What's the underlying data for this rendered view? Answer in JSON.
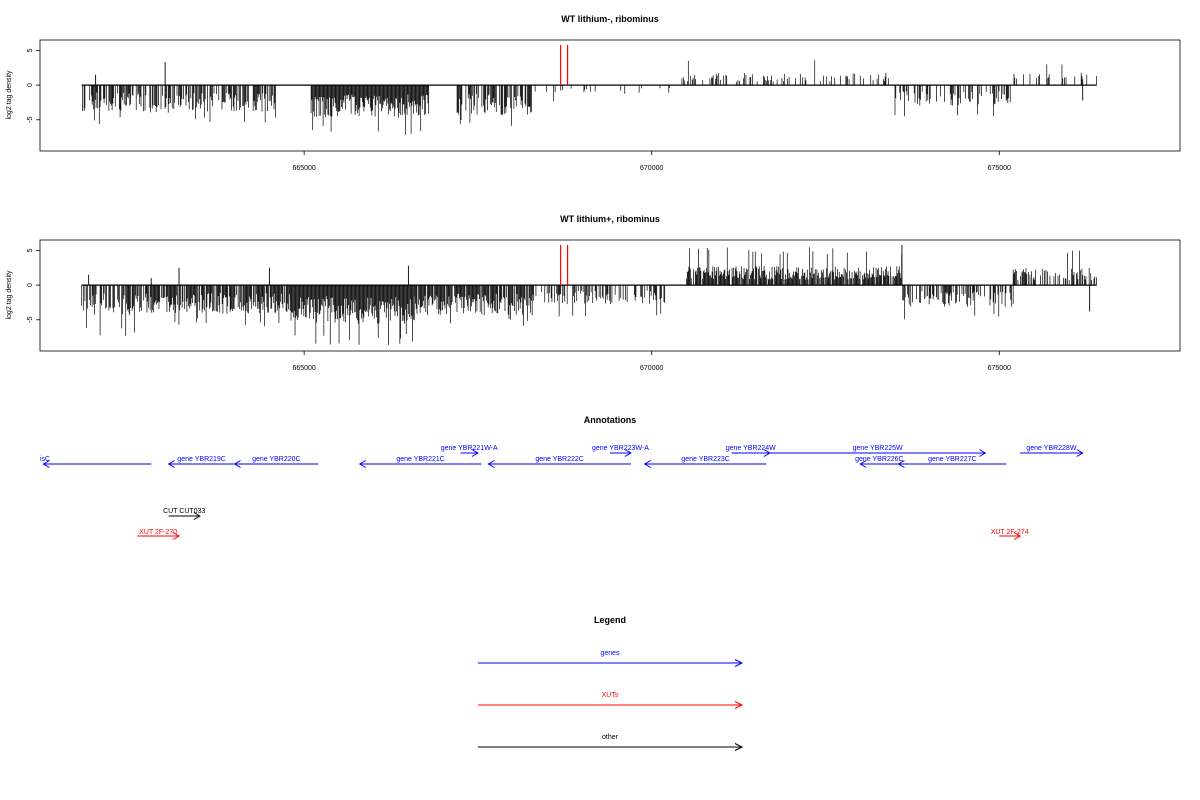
{
  "chart_data": [
    {
      "type": "bar",
      "title": "WT lithium-, ribominus",
      "ylabel": "log2 tag density",
      "xlabel": "",
      "xlim": [
        661200,
        677600
      ],
      "ylim": [
        -9.5,
        6.5
      ],
      "x_ticks": [
        665000,
        670000,
        675000
      ],
      "x_tick_labels": [
        "665000",
        "670000",
        "675000"
      ],
      "y_ticks": [
        -5,
        0,
        5
      ],
      "y_tick_labels": [
        "-5",
        "0",
        "5"
      ],
      "grid": false,
      "track_range": [
        661800,
        676400
      ],
      "highlight": {
        "x": [
          668690,
          668790
        ],
        "value": 5.8,
        "color": "#ff0000"
      },
      "segments": [
        {
          "from": 661800,
          "to": 662400,
          "sign": -1,
          "mean": 3.0,
          "density": 0.6,
          "peak": 5.8
        },
        {
          "from": 662400,
          "to": 663300,
          "sign": -1,
          "mean": 3.2,
          "density": 0.55,
          "peak": 5.5
        },
        {
          "from": 663300,
          "to": 664600,
          "sign": -1,
          "mean": 3.1,
          "density": 0.65,
          "peak": 5.4
        },
        {
          "from": 664600,
          "to": 665100,
          "sign": 0,
          "mean": 0,
          "density": 0,
          "peak": 0
        },
        {
          "from": 665100,
          "to": 666800,
          "sign": -1,
          "mean": 3.8,
          "density": 1.0,
          "peak": 7.2
        },
        {
          "from": 666800,
          "to": 667200,
          "sign": 0,
          "mean": 0,
          "density": 0,
          "peak": 0
        },
        {
          "from": 667200,
          "to": 668300,
          "sign": -1,
          "mean": 3.5,
          "density": 0.7,
          "peak": 6.2
        },
        {
          "from": 668300,
          "to": 670300,
          "sign": -1,
          "mean": 1.0,
          "density": 0.08,
          "peak": 2.8
        },
        {
          "from": 670400,
          "to": 673500,
          "sign": 1,
          "mean": 1.4,
          "density": 0.25,
          "peak": 4.0
        },
        {
          "from": 673500,
          "to": 675200,
          "sign": -1,
          "mean": 2.4,
          "density": 0.45,
          "peak": 4.5
        },
        {
          "from": 675200,
          "to": 676400,
          "sign": 1,
          "mean": 1.5,
          "density": 0.12,
          "peak": 3.3
        }
      ],
      "spikes": [
        {
          "x": 662000,
          "y": 1.5
        },
        {
          "x": 663000,
          "y": 3.3
        },
        {
          "x": 675700,
          "y": 1.0
        },
        {
          "x": 676200,
          "y": -2.2
        }
      ],
      "seed": 11
    },
    {
      "type": "bar",
      "title": "WT lithium+, ribominus",
      "ylabel": "log2 tag density",
      "xlabel": "",
      "xlim": [
        661200,
        677600
      ],
      "ylim": [
        -9.5,
        6.5
      ],
      "x_ticks": [
        665000,
        670000,
        675000
      ],
      "x_tick_labels": [
        "665000",
        "670000",
        "675000"
      ],
      "y_ticks": [
        -5,
        0,
        5
      ],
      "y_tick_labels": [
        "-5",
        "0",
        "5"
      ],
      "grid": false,
      "track_range": [
        661800,
        676400
      ],
      "highlight": {
        "x": [
          668690,
          668790
        ],
        "value": 5.8,
        "color": "#ff0000"
      },
      "segments": [
        {
          "from": 661800,
          "to": 662600,
          "sign": -1,
          "mean": 3.5,
          "density": 0.7,
          "peak": 7.5
        },
        {
          "from": 662600,
          "to": 664800,
          "sign": -1,
          "mean": 3.3,
          "density": 0.85,
          "peak": 6.0
        },
        {
          "from": 664800,
          "to": 666600,
          "sign": -1,
          "mean": 4.5,
          "density": 1.0,
          "peak": 8.8
        },
        {
          "from": 666600,
          "to": 668300,
          "sign": -1,
          "mean": 3.5,
          "density": 0.9,
          "peak": 6.0
        },
        {
          "from": 668300,
          "to": 670200,
          "sign": -1,
          "mean": 2.2,
          "density": 0.4,
          "peak": 4.8
        },
        {
          "from": 670500,
          "to": 673600,
          "sign": 1,
          "mean": 2.2,
          "density": 0.9,
          "peak": 5.5
        },
        {
          "from": 673600,
          "to": 675200,
          "sign": -1,
          "mean": 2.5,
          "density": 0.55,
          "peak": 5.2
        },
        {
          "from": 675200,
          "to": 676400,
          "sign": 1,
          "mean": 2.0,
          "density": 0.6,
          "peak": 5.0
        }
      ],
      "spikes": [
        {
          "x": 661900,
          "y": 1.5
        },
        {
          "x": 662800,
          "y": 1.0
        },
        {
          "x": 663200,
          "y": 2.5
        },
        {
          "x": 664500,
          "y": 2.5
        },
        {
          "x": 666500,
          "y": 2.8
        },
        {
          "x": 673600,
          "y": 5.8
        },
        {
          "x": 676300,
          "y": -3.8
        }
      ],
      "seed": 29
    }
  ],
  "annotations": {
    "title": "Annotations",
    "xlim": [
      661200,
      677600
    ],
    "genes_row1": [
      {
        "label": "isC",
        "from": 661250,
        "to": 662800,
        "dir": "minus"
      },
      {
        "label": "gene YBR219C",
        "from": 663050,
        "to": 664000,
        "dir": "minus"
      },
      {
        "label": "gene YBR220C",
        "from": 664000,
        "to": 665200,
        "dir": "minus"
      },
      {
        "label": "gene YBR221C",
        "from": 665800,
        "to": 667550,
        "dir": "minus"
      },
      {
        "label": "gene YBR222C",
        "from": 667650,
        "to": 669700,
        "dir": "minus"
      },
      {
        "label": "gene YBR223C",
        "from": 669900,
        "to": 671650,
        "dir": "minus"
      },
      {
        "label": "gene YBR226C",
        "from": 673000,
        "to": 673550,
        "dir": "minus"
      },
      {
        "label": "gene YBR227C",
        "from": 673550,
        "to": 675100,
        "dir": "minus"
      }
    ],
    "genes_row2": [
      {
        "label": "gene YBR221W-A",
        "from": 667250,
        "to": 667500,
        "dir": "plus"
      },
      {
        "label": "gene YBR223W-A",
        "from": 669400,
        "to": 669700,
        "dir": "plus"
      },
      {
        "label": "gene YBR224W",
        "from": 671150,
        "to": 671700,
        "dir": "plus"
      },
      {
        "label": "gene YBR225W",
        "from": 671700,
        "to": 674800,
        "dir": "plus"
      },
      {
        "label": "gene YBR228W",
        "from": 675300,
        "to": 676200,
        "dir": "plus"
      }
    ],
    "other": [
      {
        "label": "CUT CUT033",
        "from": 663050,
        "to": 663500,
        "dir": "plus"
      }
    ],
    "xuts": [
      {
        "label": "XUT 2F-270",
        "from": 662600,
        "to": 663200,
        "dir": "plus"
      },
      {
        "label": "XUT 2F-274",
        "from": 675000,
        "to": 675300,
        "dir": "plus"
      }
    ]
  },
  "legend": {
    "title": "Legend",
    "items": [
      {
        "label": "genes",
        "color": "#0000ff"
      },
      {
        "label": "XUTs",
        "color": "#ff0000"
      },
      {
        "label": "other",
        "color": "#000000"
      }
    ]
  },
  "colors": {
    "gene": "#0000ff",
    "xut": "#ff0000",
    "other": "#000000",
    "highlight": "#ff0000",
    "bar": "#000000"
  }
}
